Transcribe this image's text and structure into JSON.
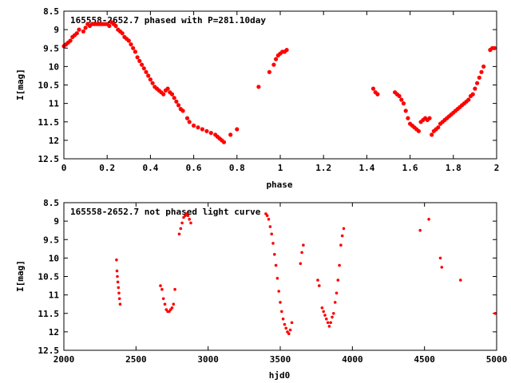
{
  "chart_data": [
    {
      "type": "scatter",
      "title": "165558-2652.7 phased with P=281.10day",
      "xlabel": "phase",
      "ylabel": "I[mag]",
      "xlim": [
        0,
        2
      ],
      "ylim": [
        12.5,
        8.5
      ],
      "y_inverted": true,
      "grid": false,
      "xticks": [
        "0",
        "0.2",
        "0.4",
        "0.6",
        "0.8",
        "1",
        "1.2",
        "1.4",
        "1.6",
        "1.8",
        "2"
      ],
      "yticks": [
        "8.5",
        "9",
        "9.5",
        "10",
        "10.5",
        "11",
        "11.5",
        "12",
        "12.5"
      ],
      "marker_color": "#ff0000",
      "points": [
        [
          0.0,
          9.45
        ],
        [
          0.01,
          9.4
        ],
        [
          0.02,
          9.35
        ],
        [
          0.03,
          9.3
        ],
        [
          0.04,
          9.2
        ],
        [
          0.05,
          9.15
        ],
        [
          0.06,
          9.1
        ],
        [
          0.07,
          9.0
        ],
        [
          0.09,
          9.05
        ],
        [
          0.1,
          8.95
        ],
        [
          0.11,
          8.85
        ],
        [
          0.12,
          8.9
        ],
        [
          0.13,
          8.85
        ],
        [
          0.14,
          8.85
        ],
        [
          0.15,
          8.85
        ],
        [
          0.16,
          8.85
        ],
        [
          0.17,
          8.85
        ],
        [
          0.18,
          8.85
        ],
        [
          0.19,
          8.85
        ],
        [
          0.2,
          8.85
        ],
        [
          0.21,
          8.9
        ],
        [
          0.22,
          8.8
        ],
        [
          0.23,
          8.85
        ],
        [
          0.24,
          8.9
        ],
        [
          0.25,
          9.0
        ],
        [
          0.26,
          9.05
        ],
        [
          0.27,
          9.1
        ],
        [
          0.28,
          9.2
        ],
        [
          0.29,
          9.25
        ],
        [
          0.3,
          9.3
        ],
        [
          0.31,
          9.4
        ],
        [
          0.32,
          9.5
        ],
        [
          0.33,
          9.6
        ],
        [
          0.34,
          9.75
        ],
        [
          0.35,
          9.85
        ],
        [
          0.36,
          9.95
        ],
        [
          0.37,
          10.05
        ],
        [
          0.38,
          10.15
        ],
        [
          0.39,
          10.25
        ],
        [
          0.4,
          10.35
        ],
        [
          0.41,
          10.45
        ],
        [
          0.42,
          10.55
        ],
        [
          0.43,
          10.6
        ],
        [
          0.44,
          10.65
        ],
        [
          0.45,
          10.7
        ],
        [
          0.46,
          10.75
        ],
        [
          0.47,
          10.65
        ],
        [
          0.48,
          10.6
        ],
        [
          0.49,
          10.7
        ],
        [
          0.5,
          10.75
        ],
        [
          0.51,
          10.85
        ],
        [
          0.52,
          10.95
        ],
        [
          0.53,
          11.05
        ],
        [
          0.54,
          11.15
        ],
        [
          0.55,
          11.2
        ],
        [
          0.57,
          11.4
        ],
        [
          0.58,
          11.5
        ],
        [
          0.6,
          11.6
        ],
        [
          0.62,
          11.65
        ],
        [
          0.64,
          11.7
        ],
        [
          0.66,
          11.75
        ],
        [
          0.68,
          11.8
        ],
        [
          0.7,
          11.85
        ],
        [
          0.71,
          11.9
        ],
        [
          0.72,
          11.95
        ],
        [
          0.73,
          12.0
        ],
        [
          0.74,
          12.05
        ],
        [
          0.77,
          11.85
        ],
        [
          0.8,
          11.7
        ],
        [
          0.9,
          10.55
        ],
        [
          0.95,
          10.15
        ],
        [
          0.97,
          9.95
        ],
        [
          0.98,
          9.8
        ],
        [
          0.99,
          9.7
        ],
        [
          1.0,
          9.65
        ],
        [
          1.01,
          9.6
        ],
        [
          1.02,
          9.6
        ],
        [
          1.03,
          9.55
        ],
        [
          1.43,
          10.6
        ],
        [
          1.44,
          10.7
        ],
        [
          1.45,
          10.75
        ],
        [
          1.53,
          10.7
        ],
        [
          1.54,
          10.75
        ],
        [
          1.55,
          10.8
        ],
        [
          1.56,
          10.9
        ],
        [
          1.57,
          11.0
        ],
        [
          1.58,
          11.2
        ],
        [
          1.59,
          11.4
        ],
        [
          1.6,
          11.55
        ],
        [
          1.61,
          11.6
        ],
        [
          1.62,
          11.65
        ],
        [
          1.63,
          11.7
        ],
        [
          1.64,
          11.75
        ],
        [
          1.65,
          11.5
        ],
        [
          1.66,
          11.45
        ],
        [
          1.67,
          11.4
        ],
        [
          1.68,
          11.45
        ],
        [
          1.69,
          11.4
        ],
        [
          1.7,
          11.85
        ],
        [
          1.71,
          11.75
        ],
        [
          1.72,
          11.7
        ],
        [
          1.73,
          11.65
        ],
        [
          1.74,
          11.55
        ],
        [
          1.75,
          11.5
        ],
        [
          1.76,
          11.45
        ],
        [
          1.77,
          11.4
        ],
        [
          1.78,
          11.35
        ],
        [
          1.79,
          11.3
        ],
        [
          1.8,
          11.25
        ],
        [
          1.81,
          11.2
        ],
        [
          1.82,
          11.15
        ],
        [
          1.83,
          11.1
        ],
        [
          1.84,
          11.05
        ],
        [
          1.85,
          11.0
        ],
        [
          1.86,
          10.95
        ],
        [
          1.87,
          10.9
        ],
        [
          1.88,
          10.8
        ],
        [
          1.89,
          10.75
        ],
        [
          1.9,
          10.6
        ],
        [
          1.91,
          10.45
        ],
        [
          1.92,
          10.3
        ],
        [
          1.93,
          10.15
        ],
        [
          1.94,
          10.0
        ],
        [
          1.97,
          9.55
        ],
        [
          1.98,
          9.5
        ],
        [
          1.99,
          9.5
        ]
      ]
    },
    {
      "type": "scatter",
      "title": "165558-2652.7 not phased light curve",
      "xlabel": "hjd0",
      "ylabel": "I[mag]",
      "xlim": [
        2000,
        5000
      ],
      "ylim": [
        12.5,
        8.5
      ],
      "y_inverted": true,
      "grid": false,
      "xticks": [
        "2000",
        "2500",
        "3000",
        "3500",
        "4000",
        "4500",
        "5000"
      ],
      "yticks": [
        "8.5",
        "9",
        "9.5",
        "10",
        "10.5",
        "11",
        "11.5",
        "12",
        "12.5"
      ],
      "marker_color": "#ff0000",
      "points": [
        [
          2365,
          10.05
        ],
        [
          2368,
          10.35
        ],
        [
          2371,
          10.5
        ],
        [
          2374,
          10.65
        ],
        [
          2378,
          10.8
        ],
        [
          2382,
          10.95
        ],
        [
          2386,
          11.1
        ],
        [
          2390,
          11.25
        ],
        [
          2670,
          10.75
        ],
        [
          2680,
          10.85
        ],
        [
          2690,
          11.1
        ],
        [
          2700,
          11.25
        ],
        [
          2710,
          11.4
        ],
        [
          2720,
          11.45
        ],
        [
          2730,
          11.45
        ],
        [
          2740,
          11.4
        ],
        [
          2750,
          11.35
        ],
        [
          2760,
          11.25
        ],
        [
          2770,
          10.85
        ],
        [
          2800,
          9.35
        ],
        [
          2810,
          9.2
        ],
        [
          2820,
          9.05
        ],
        [
          2830,
          8.9
        ],
        [
          2840,
          8.85
        ],
        [
          2850,
          8.8
        ],
        [
          2860,
          8.85
        ],
        [
          2870,
          8.95
        ],
        [
          2880,
          9.05
        ],
        [
          3400,
          8.8
        ],
        [
          3410,
          8.85
        ],
        [
          3420,
          8.95
        ],
        [
          3430,
          9.15
        ],
        [
          3440,
          9.35
        ],
        [
          3450,
          9.6
        ],
        [
          3460,
          9.9
        ],
        [
          3470,
          10.2
        ],
        [
          3480,
          10.55
        ],
        [
          3490,
          10.9
        ],
        [
          3500,
          11.2
        ],
        [
          3510,
          11.45
        ],
        [
          3520,
          11.65
        ],
        [
          3530,
          11.8
        ],
        [
          3540,
          11.9
        ],
        [
          3550,
          12.0
        ],
        [
          3560,
          12.05
        ],
        [
          3570,
          11.95
        ],
        [
          3580,
          11.75
        ],
        [
          3640,
          10.15
        ],
        [
          3650,
          9.85
        ],
        [
          3660,
          9.65
        ],
        [
          3760,
          10.6
        ],
        [
          3770,
          10.75
        ],
        [
          3790,
          11.35
        ],
        [
          3800,
          11.45
        ],
        [
          3810,
          11.55
        ],
        [
          3820,
          11.65
        ],
        [
          3830,
          11.75
        ],
        [
          3840,
          11.85
        ],
        [
          3850,
          11.75
        ],
        [
          3860,
          11.6
        ],
        [
          3870,
          11.5
        ],
        [
          3880,
          11.2
        ],
        [
          3890,
          10.95
        ],
        [
          3900,
          10.6
        ],
        [
          3910,
          10.2
        ],
        [
          3920,
          9.65
        ],
        [
          3930,
          9.4
        ],
        [
          3940,
          9.2
        ],
        [
          4470,
          9.25
        ],
        [
          4530,
          8.95
        ],
        [
          4610,
          10.0
        ],
        [
          4620,
          10.25
        ],
        [
          4750,
          10.6
        ],
        [
          4990,
          11.5
        ]
      ]
    }
  ]
}
